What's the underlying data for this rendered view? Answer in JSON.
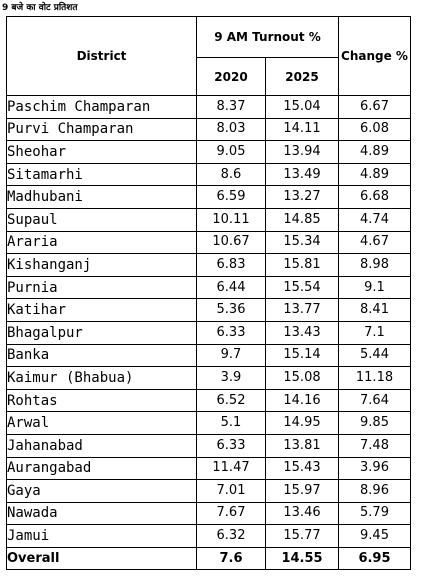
{
  "caption": "9 बजे का वोट प्रतिशत",
  "headers": {
    "district": "District",
    "turnout": "9 AM Turnout %",
    "year_a": "2020",
    "year_b": "2025",
    "change": "Change %"
  },
  "rows": [
    {
      "district": "Paschim Champaran",
      "y2020": "8.37",
      "y2025": "15.04",
      "change": "6.67"
    },
    {
      "district": "Purvi Champaran",
      "y2020": "8.03",
      "y2025": "14.11",
      "change": "6.08"
    },
    {
      "district": "Sheohar",
      "y2020": "9.05",
      "y2025": "13.94",
      "change": "4.89"
    },
    {
      "district": "Sitamarhi",
      "y2020": "8.6",
      "y2025": "13.49",
      "change": "4.89"
    },
    {
      "district": "Madhubani",
      "y2020": "6.59",
      "y2025": "13.27",
      "change": "6.68"
    },
    {
      "district": "Supaul",
      "y2020": "10.11",
      "y2025": "14.85",
      "change": "4.74"
    },
    {
      "district": "Araria",
      "y2020": "10.67",
      "y2025": "15.34",
      "change": "4.67"
    },
    {
      "district": "Kishanganj",
      "y2020": "6.83",
      "y2025": "15.81",
      "change": "8.98"
    },
    {
      "district": "Purnia",
      "y2020": "6.44",
      "y2025": "15.54",
      "change": "9.1"
    },
    {
      "district": "Katihar",
      "y2020": "5.36",
      "y2025": "13.77",
      "change": "8.41"
    },
    {
      "district": "Bhagalpur",
      "y2020": "6.33",
      "y2025": "13.43",
      "change": "7.1"
    },
    {
      "district": "Banka",
      "y2020": "9.7",
      "y2025": "15.14",
      "change": "5.44"
    },
    {
      "district": "Kaimur (Bhabua)",
      "y2020": "3.9",
      "y2025": "15.08",
      "change": "11.18"
    },
    {
      "district": "Rohtas",
      "y2020": "6.52",
      "y2025": "14.16",
      "change": "7.64"
    },
    {
      "district": "Arwal",
      "y2020": "5.1",
      "y2025": "14.95",
      "change": "9.85"
    },
    {
      "district": "Jahanabad",
      "y2020": "6.33",
      "y2025": "13.81",
      "change": "7.48"
    },
    {
      "district": "Aurangabad",
      "y2020": "11.47",
      "y2025": "15.43",
      "change": "3.96"
    },
    {
      "district": "Gaya",
      "y2020": "7.01",
      "y2025": "15.97",
      "change": "8.96"
    },
    {
      "district": "Nawada",
      "y2020": "7.67",
      "y2025": "13.46",
      "change": "5.79"
    },
    {
      "district": "Jamui",
      "y2020": "6.32",
      "y2025": "15.77",
      "change": "9.45"
    }
  ],
  "overall": {
    "label": "Overall",
    "y2020": "7.6",
    "y2025": "14.55",
    "change": "6.95"
  }
}
